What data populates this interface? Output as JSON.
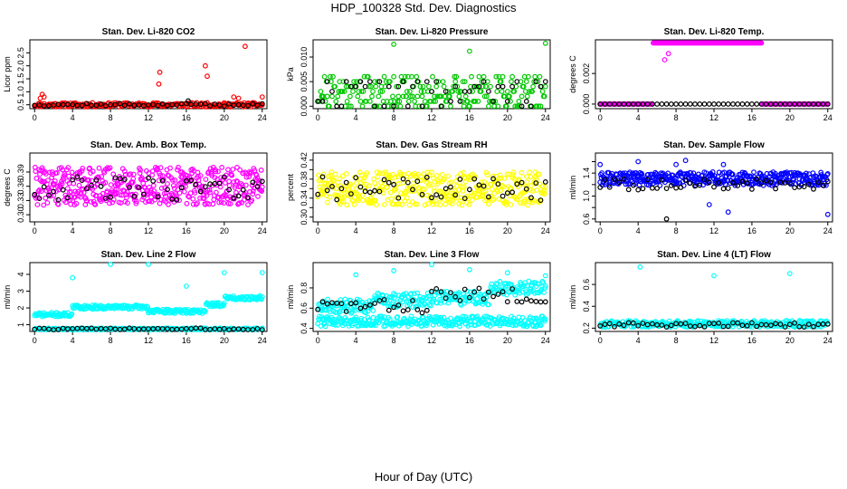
{
  "figure": {
    "title": "HDP_100328  Std. Dev. Diagnostics",
    "xlabel": "Hour of Day (UTC)"
  },
  "chart_data": [
    {
      "type": "scatter",
      "title": "Stan. Dev. Li-820 CO2",
      "ylabel": "Licor ppm",
      "xlim": [
        -0.5,
        24.5
      ],
      "ylim": [
        0.35,
        3.0
      ],
      "xticks": [
        0,
        4,
        8,
        12,
        16,
        20,
        24
      ],
      "yticks": [
        0.5,
        1.0,
        1.5,
        2.0,
        2.5
      ],
      "ytick_labels": [
        "0.5",
        "1.0",
        "1.5",
        "2.0",
        "2.5"
      ],
      "colors": {
        "main": "#ff0000",
        "alt": "#000000"
      },
      "series": [
        {
          "color": "main",
          "base": 0.5,
          "spread": 0.08,
          "step": 0.1,
          "seed": 11,
          "extra": [
            [
              0.6,
              0.75
            ],
            [
              0.8,
              0.9
            ],
            [
              1.0,
              0.8
            ],
            [
              13.2,
              1.75
            ],
            [
              13.1,
              1.3
            ],
            [
              18,
              2.0
            ],
            [
              18.2,
              1.6
            ],
            [
              22.2,
              2.75
            ],
            [
              21.0,
              0.8
            ],
            [
              21.5,
              0.75
            ],
            [
              24,
              0.8
            ]
          ]
        },
        {
          "color": "alt",
          "base": 0.5,
          "spread": 0.05,
          "step": 0.5,
          "seed": 12,
          "extra": [
            [
              16.2,
              0.65
            ]
          ]
        }
      ]
    },
    {
      "type": "scatter",
      "title": "Stan. Dev. Li-820 Pressure",
      "ylabel": "kPa",
      "xlim": [
        -0.5,
        24.5
      ],
      "ylim": [
        -0.0005,
        0.0135
      ],
      "xticks": [
        0,
        4,
        8,
        12,
        16,
        20,
        24
      ],
      "yticks": [
        0.0,
        0.005,
        0.01
      ],
      "ytick_labels": [
        "0.000",
        "0.005",
        "0.010"
      ],
      "colors": {
        "main": "#00c800",
        "alt": "#000000"
      },
      "series": [
        {
          "color": "main",
          "levels": [
            0.0,
            0.001,
            0.002,
            0.003,
            0.004,
            0.005,
            0.006
          ],
          "step": 0.1,
          "seed": 21,
          "extra": [
            [
              8,
              0.0126
            ],
            [
              16,
              0.0112
            ],
            [
              24,
              0.0128
            ]
          ]
        },
        {
          "color": "alt",
          "levels": [
            0.0,
            0.001,
            0.003,
            0.004,
            0.005
          ],
          "step": 0.5,
          "seed": 22
        }
      ]
    },
    {
      "type": "scatter",
      "title": "Stan. Dev. Li-820 Temp.",
      "ylabel": "degrees C",
      "xlim": [
        -0.5,
        24.5
      ],
      "ylim": [
        -0.0003,
        0.0042
      ],
      "xticks": [
        0,
        4,
        8,
        12,
        16,
        20,
        24
      ],
      "yticks": [
        0.0,
        0.002
      ],
      "ytick_labels": [
        "0.000",
        "0.002"
      ],
      "colors": {
        "main": "#ff00ff",
        "alt": "#000000"
      },
      "series": [
        {
          "color": "main",
          "levels": [
            0.0
          ],
          "step": 0.1,
          "seed": 31,
          "band": {
            "from": 5.5,
            "to": 17,
            "value": 0.004
          },
          "extra": [
            [
              6.8,
              0.0029
            ],
            [
              7.2,
              0.0033
            ]
          ]
        },
        {
          "color": "alt",
          "levels": [
            0.0
          ],
          "step": 0.5,
          "seed": 32
        }
      ]
    },
    {
      "type": "scatter",
      "title": "Stan. Dev. Amb. Box Temp.",
      "ylabel": "degrees C",
      "xlim": [
        -0.5,
        24.5
      ],
      "ylim": [
        0.285,
        0.43
      ],
      "xticks": [
        0,
        4,
        8,
        12,
        16,
        20,
        24
      ],
      "yticks": [
        0.3,
        0.33,
        0.36,
        0.39
      ],
      "ytick_labels": [
        "0.30",
        "0.33",
        "0.36",
        "0.39"
      ],
      "colors": {
        "main": "#ff00ff",
        "alt": "#000000"
      },
      "series": [
        {
          "color": "main",
          "base": 0.36,
          "spread": 0.04,
          "step": 0.05,
          "seed": 41
        },
        {
          "color": "alt",
          "base": 0.355,
          "spread": 0.025,
          "step": 0.5,
          "seed": 42
        }
      ]
    },
    {
      "type": "scatter",
      "title": "Stan. Dev. Gas Stream RH",
      "ylabel": "percent",
      "xlim": [
        -0.5,
        24.5
      ],
      "ylim": [
        0.29,
        0.435
      ],
      "xticks": [
        0,
        4,
        8,
        12,
        16,
        20,
        24
      ],
      "yticks": [
        0.3,
        0.32,
        0.34,
        0.36,
        0.38,
        0.4,
        0.42
      ],
      "ytick_labels": [
        "0.30",
        "",
        "0.34",
        "",
        "0.38",
        "",
        "0.42"
      ],
      "colors": {
        "main": "#ffff00",
        "alt": "#000000"
      },
      "series": [
        {
          "color": "main",
          "base": 0.36,
          "spread": 0.035,
          "step": 0.06,
          "seed": 51
        },
        {
          "color": "alt",
          "base": 0.36,
          "spread": 0.025,
          "step": 0.5,
          "seed": 52
        }
      ]
    },
    {
      "type": "scatter",
      "title": "Stan. Dev. Sample Flow",
      "ylabel": "ml/min",
      "xlim": [
        -0.5,
        24.5
      ],
      "ylim": [
        0.55,
        1.75
      ],
      "xticks": [
        0,
        4,
        8,
        12,
        16,
        20,
        24
      ],
      "yticks": [
        0.6,
        0.8,
        1.0,
        1.2,
        1.4,
        1.6
      ],
      "ytick_labels": [
        "0.6",
        "",
        "1.0",
        "",
        "1.4",
        ""
      ],
      "colors": {
        "main": "#0000ff",
        "alt": "#000000"
      },
      "series": [
        {
          "color": "main",
          "base": 1.3,
          "spread": 0.12,
          "step": 0.06,
          "seed": 61,
          "extra": [
            [
              0,
              1.55
            ],
            [
              4,
              1.6
            ],
            [
              8,
              1.55
            ],
            [
              9,
              1.62
            ],
            [
              13,
              1.55
            ],
            [
              24,
              0.68
            ],
            [
              11.5,
              0.85
            ],
            [
              13.5,
              0.72
            ]
          ]
        },
        {
          "color": "alt",
          "base": 1.2,
          "spread": 0.1,
          "step": 0.5,
          "seed": 62,
          "extra": [
            [
              7,
              0.6
            ]
          ]
        }
      ]
    },
    {
      "type": "scatter",
      "title": "Stan. Dev. Line 2 Flow",
      "ylabel": "ml/min",
      "xlim": [
        -0.5,
        24.5
      ],
      "ylim": [
        0.6,
        4.7
      ],
      "xticks": [
        0,
        4,
        8,
        12,
        16,
        20,
        24
      ],
      "yticks": [
        1,
        2,
        3,
        4
      ],
      "ytick_labels": [
        "1",
        "2",
        "3",
        "4"
      ],
      "colors": {
        "main": "#00ffff",
        "alt": "#000000"
      },
      "series": [
        {
          "color": "main",
          "segments": [
            [
              0,
              4,
              1.6
            ],
            [
              4,
              12,
              2.05
            ],
            [
              12,
              18,
              1.8
            ],
            [
              18,
              20,
              2.2
            ],
            [
              20,
              24,
              2.6
            ]
          ],
          "spread": 0.12,
          "step": 0.08,
          "seed": 71,
          "extra": [
            [
              4,
              3.8
            ],
            [
              8,
              4.6
            ],
            [
              12,
              4.6
            ],
            [
              16,
              3.3
            ],
            [
              20,
              4.1
            ],
            [
              24,
              4.1
            ]
          ]
        },
        {
          "color": "main",
          "base": 0.75,
          "spread": 0.05,
          "step": 0.12,
          "seed": 72
        },
        {
          "color": "alt",
          "base": 0.75,
          "spread": 0.05,
          "step": 0.5,
          "seed": 73
        }
      ]
    },
    {
      "type": "scatter",
      "title": "Stan. Dev. Line 3 Flow",
      "ylabel": "ml/min",
      "xlim": [
        -0.5,
        24.5
      ],
      "ylim": [
        0.37,
        1.05
      ],
      "xticks": [
        0,
        4,
        8,
        12,
        16,
        20,
        24
      ],
      "yticks": [
        0.4,
        0.6,
        0.8
      ],
      "ytick_labels": [
        "0.4",
        "0.6",
        "0.8"
      ],
      "colors": {
        "main": "#00ffff",
        "alt": "#000000"
      },
      "series": [
        {
          "color": "main",
          "segments": [
            [
              0,
              6,
              0.62
            ],
            [
              6,
              12,
              0.68
            ],
            [
              12,
              18,
              0.7
            ],
            [
              18,
              24,
              0.8
            ]
          ],
          "spread": 0.07,
          "step": 0.08,
          "seed": 81,
          "extra": [
            [
              4,
              0.93
            ],
            [
              8,
              0.97
            ],
            [
              12,
              1.03
            ],
            [
              16,
              0.98
            ],
            [
              20,
              0.95
            ],
            [
              24,
              0.92
            ]
          ]
        },
        {
          "color": "main",
          "base": 0.47,
          "spread": 0.05,
          "step": 0.08,
          "seed": 82
        },
        {
          "color": "alt",
          "segments": [
            [
              0,
              12,
              0.62
            ],
            [
              12,
              24,
              0.73
            ]
          ],
          "spread": 0.07,
          "step": 0.5,
          "seed": 83
        }
      ]
    },
    {
      "type": "scatter",
      "title": "Stan. Dev. Line 4 (LT) Flow",
      "ylabel": "ml/min",
      "xlim": [
        -0.5,
        24.5
      ],
      "ylim": [
        0.17,
        0.8
      ],
      "xticks": [
        0,
        4,
        8,
        12,
        16,
        20,
        24
      ],
      "yticks": [
        0.2,
        0.4,
        0.6
      ],
      "ytick_labels": [
        "0.2",
        "0.4",
        "0.6"
      ],
      "colors": {
        "main": "#00ffff",
        "alt": "#000000"
      },
      "series": [
        {
          "color": "main",
          "base": 0.24,
          "spread": 0.03,
          "step": 0.08,
          "seed": 91,
          "extra": [
            [
              4.2,
              0.76
            ],
            [
              12,
              0.68
            ],
            [
              20,
              0.7
            ]
          ]
        },
        {
          "color": "alt",
          "base": 0.23,
          "spread": 0.02,
          "step": 0.5,
          "seed": 92
        }
      ]
    }
  ]
}
